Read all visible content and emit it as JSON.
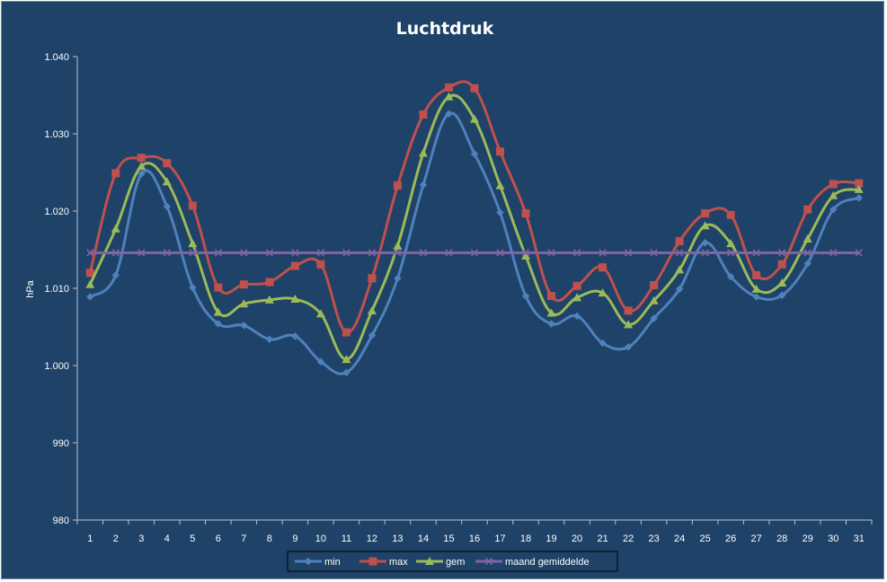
{
  "chart_data": {
    "type": "line",
    "title": "Luchtdruk",
    "xlabel": "",
    "ylabel": "hPa",
    "ylim": [
      980,
      1040
    ],
    "yticks": [
      980,
      990,
      1000,
      1010,
      1020,
      1030,
      1040
    ],
    "ytick_labels": [
      "980",
      "990",
      "1.000",
      "1.010",
      "1.020",
      "1.030",
      "1.040"
    ],
    "grid": false,
    "legend_position": "bottom",
    "categories": [
      "1",
      "2",
      "3",
      "4",
      "5",
      "6",
      "7",
      "8",
      "9",
      "10",
      "11",
      "12",
      "13",
      "14",
      "15",
      "16",
      "17",
      "18",
      "19",
      "20",
      "21",
      "22",
      "23",
      "24",
      "25",
      "26",
      "27",
      "28",
      "29",
      "30",
      "31"
    ],
    "series": [
      {
        "name": "min",
        "color": "#4f81bd",
        "marker": "diamond",
        "values": [
          1008.9,
          1011.7,
          1024.8,
          1020.6,
          1010.1,
          1005.4,
          1005.2,
          1003.4,
          1003.8,
          1000.5,
          999.1,
          1003.9,
          1011.3,
          1023.4,
          1032.6,
          1027.4,
          1019.8,
          1009.0,
          1005.4,
          1006.4,
          1002.9,
          1002.4,
          1006.1,
          1009.9,
          1015.9,
          1011.5,
          1008.9,
          1009.1,
          1013.2,
          1020.2,
          1021.7
        ]
      },
      {
        "name": "max",
        "color": "#c0504d",
        "marker": "square",
        "values": [
          1012.0,
          1024.9,
          1026.9,
          1026.2,
          1020.7,
          1010.1,
          1010.5,
          1010.8,
          1012.9,
          1013.1,
          1004.3,
          1011.3,
          1023.3,
          1032.5,
          1036.0,
          1035.9,
          1027.7,
          1019.7,
          1009.0,
          1010.3,
          1012.7,
          1007.1,
          1010.4,
          1016.1,
          1019.7,
          1019.5,
          1011.7,
          1013.1,
          1020.2,
          1023.5,
          1023.6
        ]
      },
      {
        "name": "gem",
        "color": "#9bbb59",
        "marker": "triangle",
        "values": [
          1010.5,
          1017.7,
          1025.8,
          1023.8,
          1015.8,
          1006.9,
          1008.0,
          1008.5,
          1008.6,
          1006.7,
          1000.8,
          1007.1,
          1015.5,
          1027.5,
          1034.8,
          1031.9,
          1023.3,
          1014.2,
          1006.8,
          1008.8,
          1009.4,
          1005.3,
          1008.4,
          1012.4,
          1018.1,
          1015.8,
          1009.9,
          1010.7,
          1016.4,
          1022.0,
          1022.8
        ]
      },
      {
        "name": "maand gemiddelde",
        "color": "#8064a2",
        "marker": "x",
        "values": [
          1014.6,
          1014.6,
          1014.6,
          1014.6,
          1014.6,
          1014.6,
          1014.6,
          1014.6,
          1014.6,
          1014.6,
          1014.6,
          1014.6,
          1014.6,
          1014.6,
          1014.6,
          1014.6,
          1014.6,
          1014.6,
          1014.6,
          1014.6,
          1014.6,
          1014.6,
          1014.6,
          1014.6,
          1014.6,
          1014.6,
          1014.6,
          1014.6,
          1014.6,
          1014.6,
          1014.6
        ]
      }
    ]
  }
}
